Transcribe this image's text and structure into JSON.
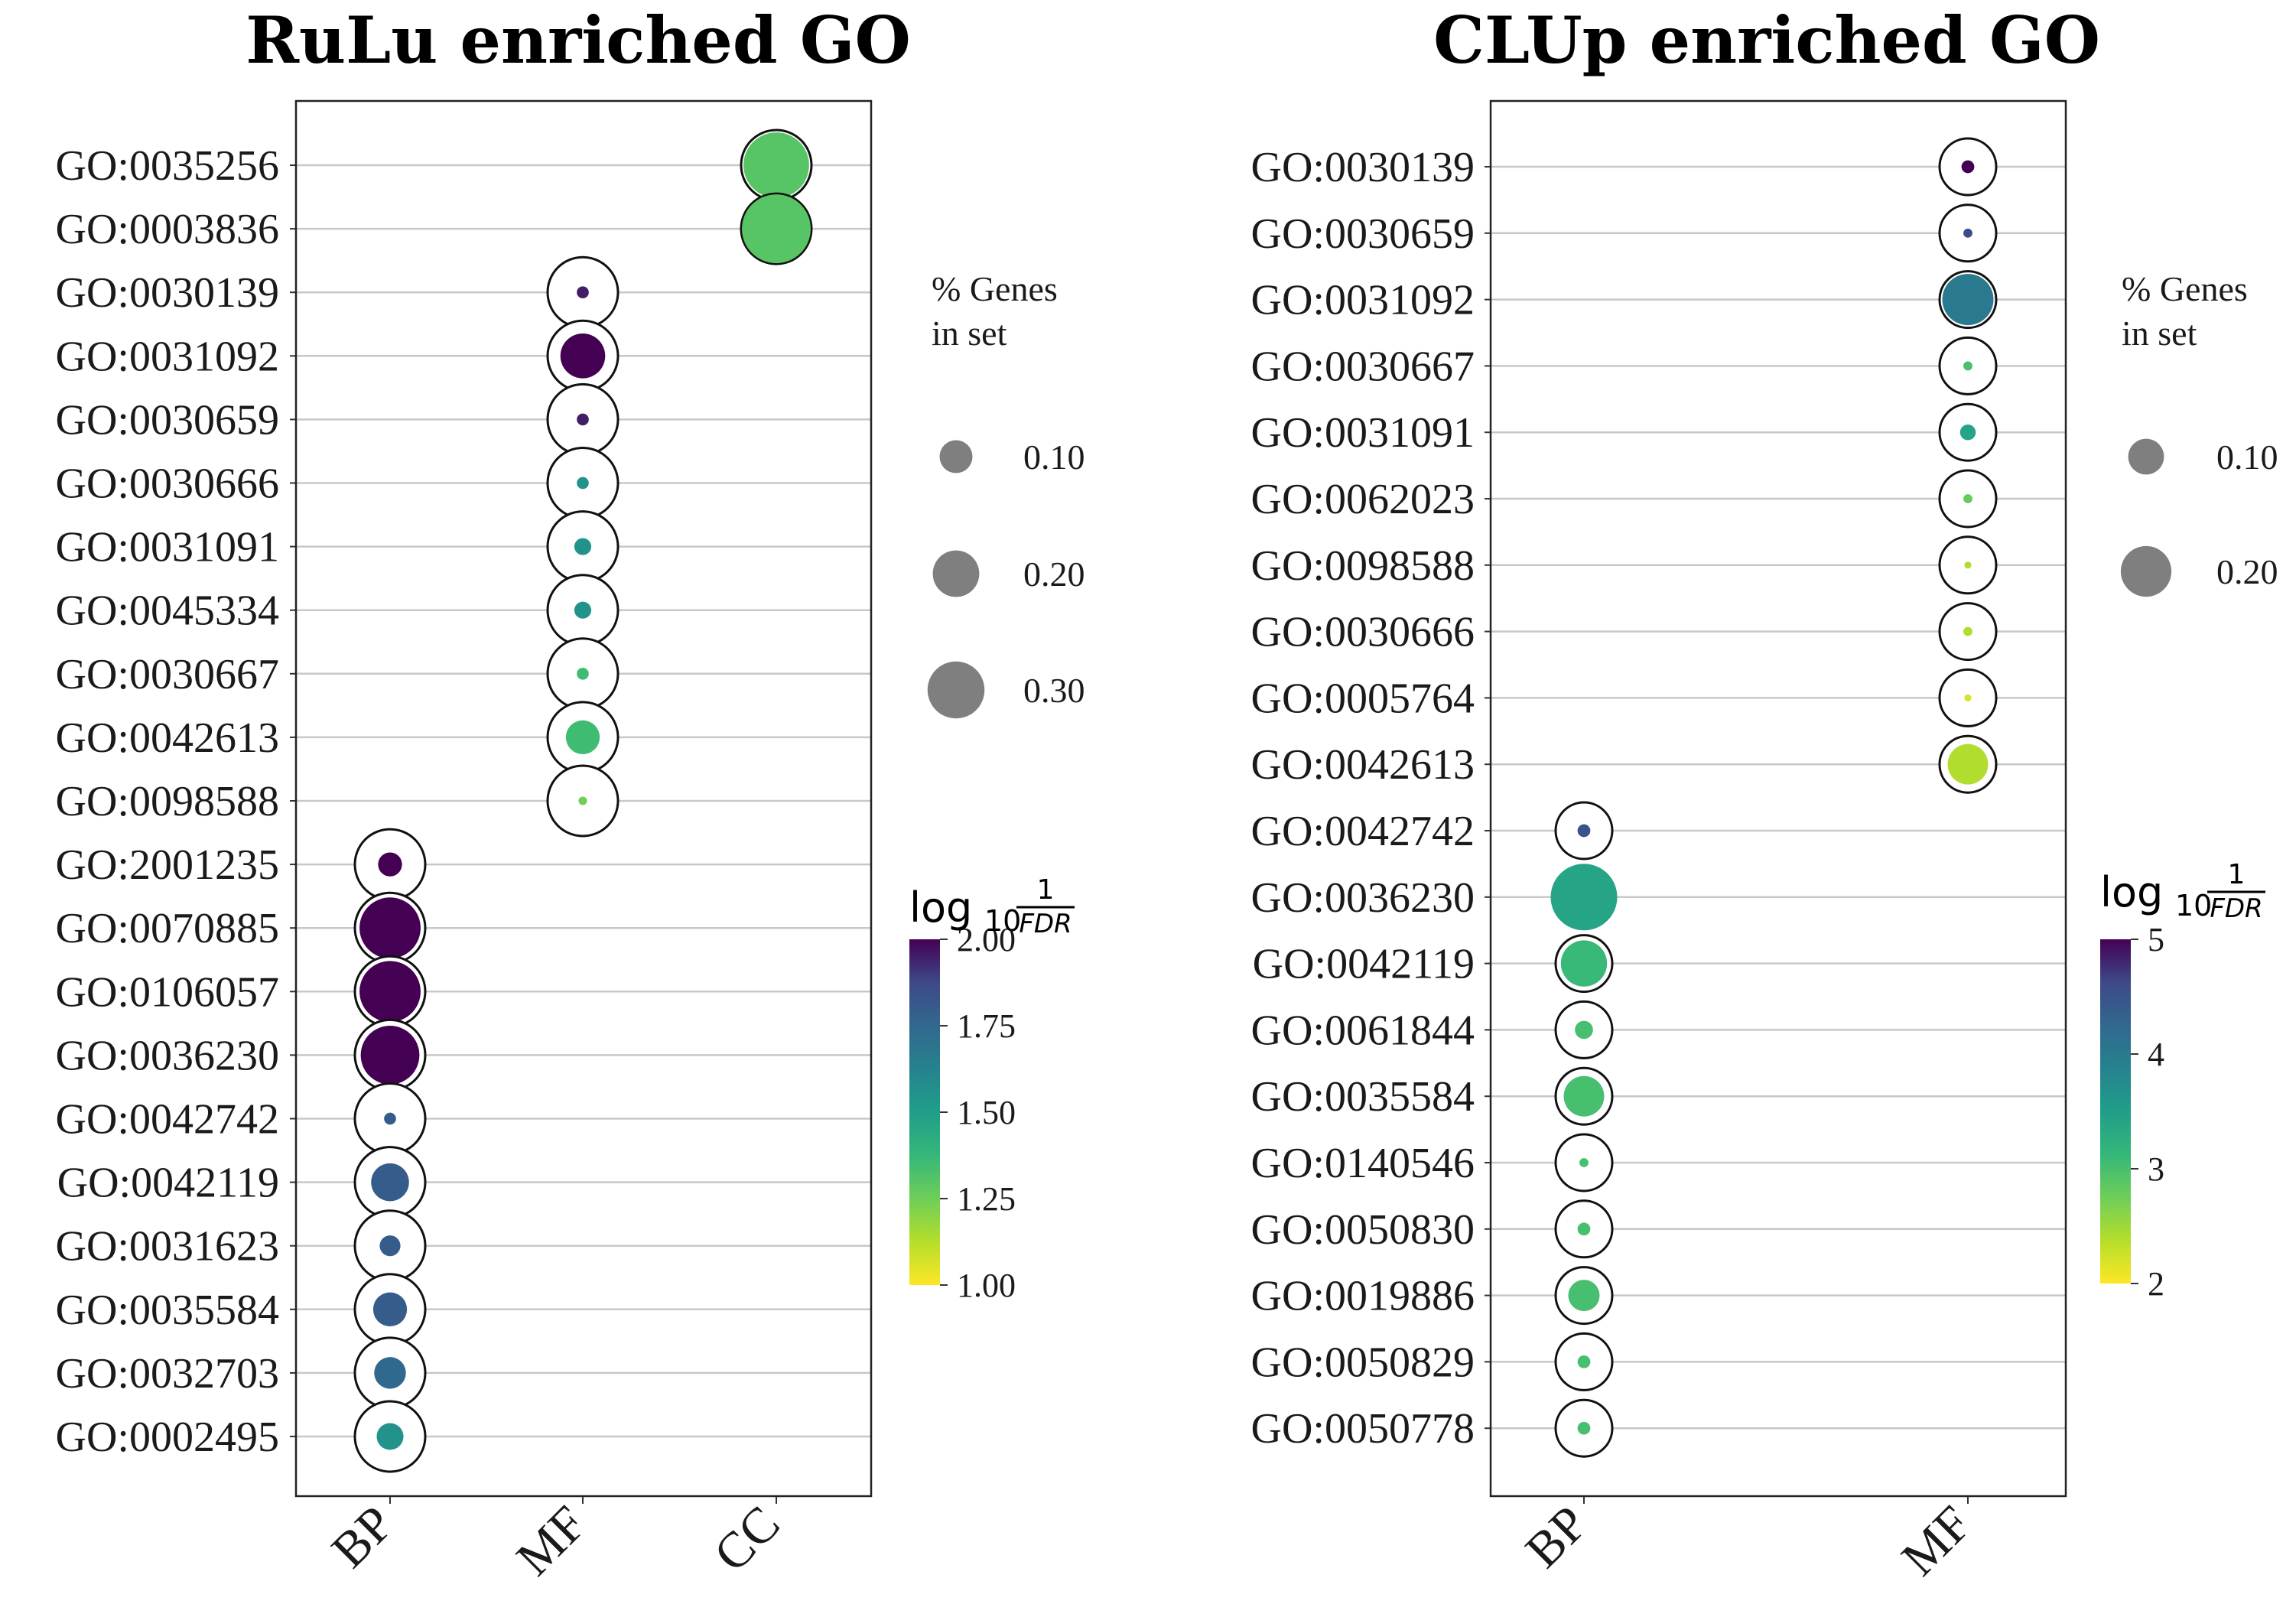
{
  "chart_data": [
    {
      "type": "scatter",
      "title": "RuLu enriched GO",
      "categories": [
        "BP",
        "MF",
        "CC"
      ],
      "terms": [
        "GO:0035256",
        "GO:0003836",
        "GO:0030139",
        "GO:0031092",
        "GO:0030659",
        "GO:0030666",
        "GO:0031091",
        "GO:0045334",
        "GO:0030667",
        "GO:0042613",
        "GO:0098588",
        "GO:2001235",
        "GO:0070885",
        "GO:0106057",
        "GO:0036230",
        "GO:0042742",
        "GO:0042119",
        "GO:0031623",
        "GO:0035584",
        "GO:0032703",
        "GO:0002495"
      ],
      "points": [
        {
          "term": "GO:0035256",
          "category": "CC",
          "genes_pct": 0.3,
          "log10_inv_fdr": 1.3
        },
        {
          "term": "GO:0003836",
          "category": "CC",
          "genes_pct": 0.33,
          "log10_inv_fdr": 1.3
        },
        {
          "term": "GO:0030139",
          "category": "MF",
          "genes_pct": 0.01,
          "log10_inv_fdr": 1.95
        },
        {
          "term": "GO:0031092",
          "category": "MF",
          "genes_pct": 0.14,
          "log10_inv_fdr": 2.0
        },
        {
          "term": "GO:0030659",
          "category": "MF",
          "genes_pct": 0.01,
          "log10_inv_fdr": 1.95
        },
        {
          "term": "GO:0030666",
          "category": "MF",
          "genes_pct": 0.01,
          "log10_inv_fdr": 1.55
        },
        {
          "term": "GO:0031091",
          "category": "MF",
          "genes_pct": 0.02,
          "log10_inv_fdr": 1.55
        },
        {
          "term": "GO:0045334",
          "category": "MF",
          "genes_pct": 0.02,
          "log10_inv_fdr": 1.55
        },
        {
          "term": "GO:0030667",
          "category": "MF",
          "genes_pct": 0.01,
          "log10_inv_fdr": 1.35
        },
        {
          "term": "GO:0042613",
          "category": "MF",
          "genes_pct": 0.08,
          "log10_inv_fdr": 1.35
        },
        {
          "term": "GO:0098588",
          "category": "MF",
          "genes_pct": 0.005,
          "log10_inv_fdr": 1.25
        },
        {
          "term": "GO:2001235",
          "category": "BP",
          "genes_pct": 0.04,
          "log10_inv_fdr": 2.0
        },
        {
          "term": "GO:0070885",
          "category": "BP",
          "genes_pct": 0.26,
          "log10_inv_fdr": 2.0
        },
        {
          "term": "GO:0106057",
          "category": "BP",
          "genes_pct": 0.26,
          "log10_inv_fdr": 2.0
        },
        {
          "term": "GO:0036230",
          "category": "BP",
          "genes_pct": 0.24,
          "log10_inv_fdr": 2.0
        },
        {
          "term": "GO:0042742",
          "category": "BP",
          "genes_pct": 0.01,
          "log10_inv_fdr": 1.8
        },
        {
          "term": "GO:0042119",
          "category": "BP",
          "genes_pct": 0.1,
          "log10_inv_fdr": 1.8
        },
        {
          "term": "GO:0031623",
          "category": "BP",
          "genes_pct": 0.03,
          "log10_inv_fdr": 1.8
        },
        {
          "term": "GO:0035584",
          "category": "BP",
          "genes_pct": 0.08,
          "log10_inv_fdr": 1.8
        },
        {
          "term": "GO:0032703",
          "category": "BP",
          "genes_pct": 0.07,
          "log10_inv_fdr": 1.75
        },
        {
          "term": "GO:0002495",
          "category": "BP",
          "genes_pct": 0.05,
          "log10_inv_fdr": 1.55
        }
      ],
      "size_legend": {
        "title_lines": [
          "% Genes",
          "in set"
        ],
        "values": [
          0.1,
          0.2,
          0.3
        ],
        "labels": [
          "0.10",
          "0.20",
          "0.30"
        ]
      },
      "colorbar": {
        "title_main": "log",
        "title_sub": "10",
        "title_num": "1",
        "title_den": "FDR",
        "min": 1.0,
        "max": 2.0,
        "ticks": [
          2.0,
          1.75,
          1.5,
          1.25,
          1.0
        ],
        "tick_labels": [
          "2.00",
          "1.75",
          "1.50",
          "1.25",
          "1.00"
        ]
      },
      "grid": true
    },
    {
      "type": "scatter",
      "title": "CLUp enriched GO",
      "categories": [
        "BP",
        "MF"
      ],
      "terms": [
        "GO:0030139",
        "GO:0030659",
        "GO:0031092",
        "GO:0030667",
        "GO:0031091",
        "GO:0062023",
        "GO:0098588",
        "GO:0030666",
        "GO:0005764",
        "GO:0042613",
        "GO:0042742",
        "GO:0036230",
        "GO:0042119",
        "GO:0061844",
        "GO:0035584",
        "GO:0140546",
        "GO:0050830",
        "GO:0019886",
        "GO:0050829",
        "GO:0050778"
      ],
      "points": [
        {
          "term": "GO:0030139",
          "category": "MF",
          "genes_pct": 0.01,
          "log10_inv_fdr": 5.0
        },
        {
          "term": "GO:0030659",
          "category": "MF",
          "genes_pct": 0.005,
          "log10_inv_fdr": 4.6
        },
        {
          "term": "GO:0031092",
          "category": "MF",
          "genes_pct": 0.16,
          "log10_inv_fdr": 4.0
        },
        {
          "term": "GO:0030667",
          "category": "MF",
          "genes_pct": 0.005,
          "log10_inv_fdr": 3.0
        },
        {
          "term": "GO:0031091",
          "category": "MF",
          "genes_pct": 0.015,
          "log10_inv_fdr": 3.4
        },
        {
          "term": "GO:0062023",
          "category": "MF",
          "genes_pct": 0.005,
          "log10_inv_fdr": 2.8
        },
        {
          "term": "GO:0098588",
          "category": "MF",
          "genes_pct": 0.003,
          "log10_inv_fdr": 2.4
        },
        {
          "term": "GO:0030666",
          "category": "MF",
          "genes_pct": 0.005,
          "log10_inv_fdr": 2.4
        },
        {
          "term": "GO:0005764",
          "category": "MF",
          "genes_pct": 0.003,
          "log10_inv_fdr": 2.2
        },
        {
          "term": "GO:0042613",
          "category": "MF",
          "genes_pct": 0.1,
          "log10_inv_fdr": 2.4
        },
        {
          "term": "GO:0042742",
          "category": "BP",
          "genes_pct": 0.01,
          "log10_inv_fdr": 4.5
        },
        {
          "term": "GO:0036230",
          "category": "BP",
          "genes_pct": 0.27,
          "log10_inv_fdr": 3.4
        },
        {
          "term": "GO:0042119",
          "category": "BP",
          "genes_pct": 0.13,
          "log10_inv_fdr": 3.1
        },
        {
          "term": "GO:0061844",
          "category": "BP",
          "genes_pct": 0.02,
          "log10_inv_fdr": 3.0
        },
        {
          "term": "GO:0035584",
          "category": "BP",
          "genes_pct": 0.1,
          "log10_inv_fdr": 3.0
        },
        {
          "term": "GO:0140546",
          "category": "BP",
          "genes_pct": 0.005,
          "log10_inv_fdr": 3.0
        },
        {
          "term": "GO:0050830",
          "category": "BP",
          "genes_pct": 0.01,
          "log10_inv_fdr": 3.0
        },
        {
          "term": "GO:0019886",
          "category": "BP",
          "genes_pct": 0.06,
          "log10_inv_fdr": 3.0
        },
        {
          "term": "GO:0050829",
          "category": "BP",
          "genes_pct": 0.01,
          "log10_inv_fdr": 3.0
        },
        {
          "term": "GO:0050778",
          "category": "BP",
          "genes_pct": 0.01,
          "log10_inv_fdr": 3.0
        }
      ],
      "size_legend": {
        "title_lines": [
          "% Genes",
          "in set"
        ],
        "values": [
          0.1,
          0.2
        ],
        "labels": [
          "0.10",
          "0.20"
        ]
      },
      "colorbar": {
        "title_main": "log",
        "title_sub": "10",
        "title_num": "1",
        "title_den": "FDR",
        "min": 2,
        "max": 5,
        "ticks": [
          5,
          4,
          3,
          2
        ],
        "tick_labels": [
          "5",
          "4",
          "3",
          "2"
        ]
      },
      "grid": true
    }
  ]
}
